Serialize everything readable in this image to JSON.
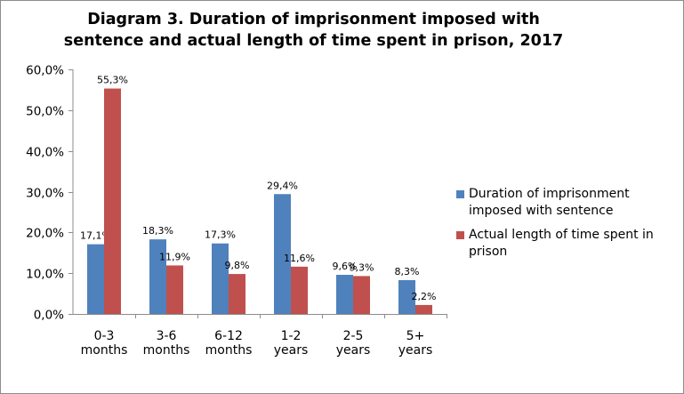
{
  "chart_data": {
    "type": "bar",
    "title_lines": [
      "Diagram 3. Duration of imprisonment imposed with",
      "sentence and actual length of time spent in prison, 2017"
    ],
    "categories": [
      [
        "0-3",
        "months"
      ],
      [
        "3-6",
        "months"
      ],
      [
        "6-12",
        "months"
      ],
      [
        "1-2",
        "years"
      ],
      [
        "2-5",
        "years"
      ],
      [
        "5+",
        "years"
      ]
    ],
    "series": [
      {
        "name_lines": [
          "Duration of imprisonment",
          "imposed with sentence"
        ],
        "color": "#4F81BD",
        "values": [
          17.1,
          18.3,
          17.3,
          29.4,
          9.6,
          8.3
        ],
        "labels": [
          "17,1%",
          "18,3%",
          "17,3%",
          "29,4%",
          "9,6%",
          "8,3%"
        ]
      },
      {
        "name_lines": [
          "Actual length of time spent in",
          "prison"
        ],
        "color": "#C0504D",
        "values": [
          55.3,
          11.9,
          9.8,
          11.6,
          9.3,
          2.2
        ],
        "labels": [
          "55,3%",
          "11,9%",
          "9,8%",
          "11,6%",
          "9,3%",
          "2,2%"
        ]
      }
    ],
    "ylim": [
      0,
      60
    ],
    "yticks": [
      0,
      10,
      20,
      30,
      40,
      50,
      60
    ],
    "ytick_labels": [
      "0,0%",
      "10,0%",
      "20,0%",
      "30,0%",
      "40,0%",
      "50,0%",
      "60,0%"
    ],
    "grid": false,
    "legend": "right"
  }
}
